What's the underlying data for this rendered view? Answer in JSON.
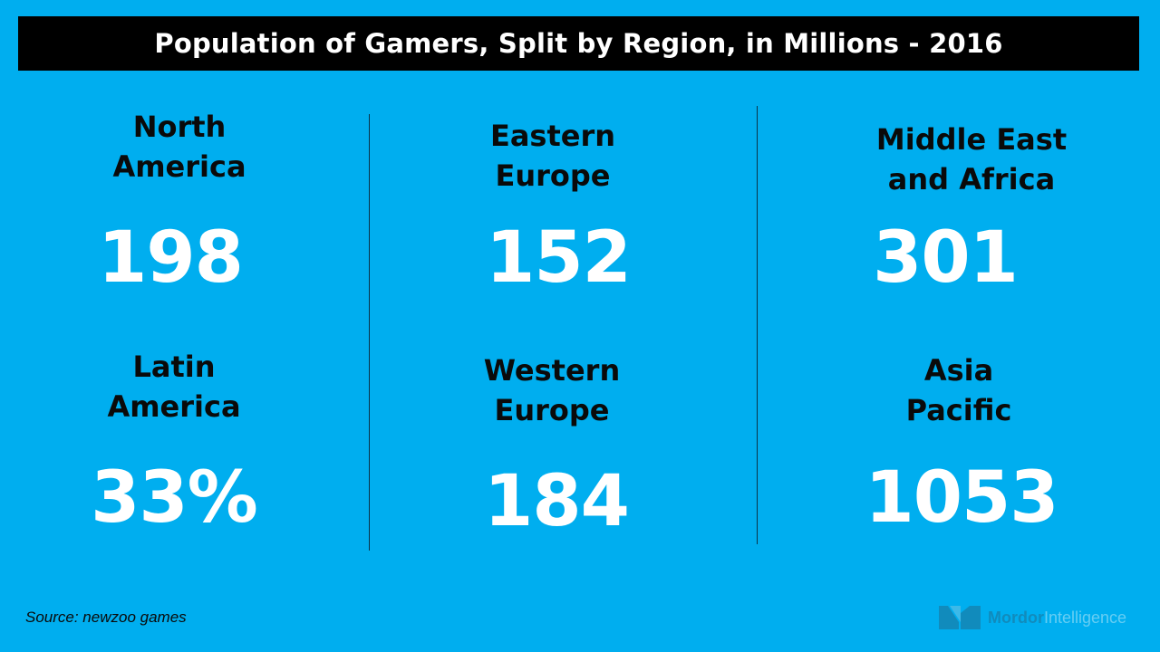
{
  "title": "Population of Gamers, Split by Region, in Millions - 2016",
  "source": "Source: newzoo games",
  "logo": {
    "brand_bold": "Mordor",
    "brand_light": "Intelligence",
    "icon": "mordor-logo-icon"
  },
  "colors": {
    "background": "#00AEEF",
    "title_bar": "#000000",
    "title_text": "#FFFFFF",
    "label_text": "#0A0A0A",
    "value_text": "#FFFFFF"
  },
  "regions": [
    {
      "label": "North\nAmerica",
      "value": "198"
    },
    {
      "label": "Latin\nAmerica",
      "value": "33%"
    },
    {
      "label": "Eastern\nEurope",
      "value": "152"
    },
    {
      "label": "Western\nEurope",
      "value": "184"
    },
    {
      "label": "Middle East\nand Africa",
      "value": "301"
    },
    {
      "label": "Asia\nPacific",
      "value": "1053"
    }
  ],
  "chart_data": {
    "type": "table",
    "title": "Population of Gamers, Split by Region, in Millions - 2016",
    "categories": [
      "North America",
      "Latin America",
      "Eastern Europe",
      "Western Europe",
      "Middle East and Africa",
      "Asia Pacific"
    ],
    "values": [
      "198",
      "33%",
      "152",
      "184",
      "301",
      "1053"
    ]
  }
}
